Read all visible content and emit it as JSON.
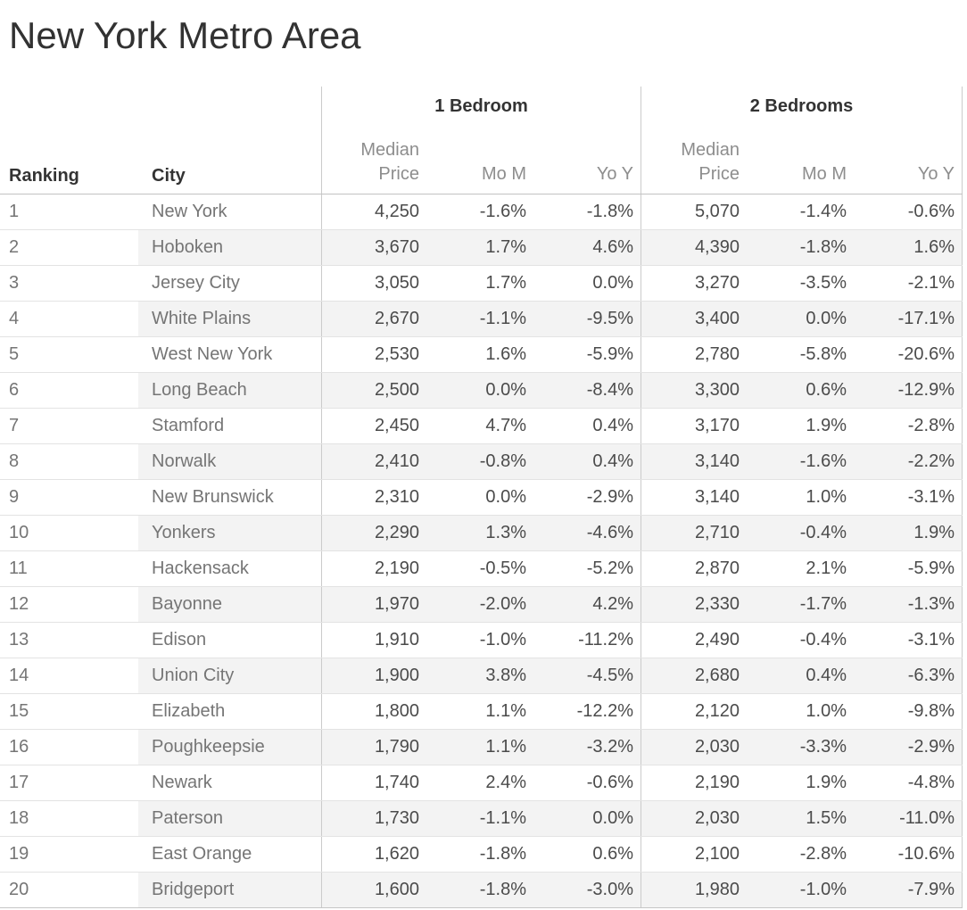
{
  "title": "New York Metro Area",
  "table": {
    "ranking_header": "Ranking",
    "city_header": "City",
    "group1_label": "1 Bedroom",
    "group2_label": "2 Bedrooms",
    "median_price_label": "Median\nPrice",
    "mom_label": "Mo M",
    "yoy_label": "Yo Y",
    "rows": [
      {
        "ranking": "1",
        "city": "New York",
        "br1_price": "4,250",
        "br1_mom": "-1.6%",
        "br1_yoy": "-1.8%",
        "br2_price": "5,070",
        "br2_mom": "-1.4%",
        "br2_yoy": "-0.6%"
      },
      {
        "ranking": "2",
        "city": "Hoboken",
        "br1_price": "3,670",
        "br1_mom": "1.7%",
        "br1_yoy": "4.6%",
        "br2_price": "4,390",
        "br2_mom": "-1.8%",
        "br2_yoy": "1.6%"
      },
      {
        "ranking": "3",
        "city": "Jersey City",
        "br1_price": "3,050",
        "br1_mom": "1.7%",
        "br1_yoy": "0.0%",
        "br2_price": "3,270",
        "br2_mom": "-3.5%",
        "br2_yoy": "-2.1%"
      },
      {
        "ranking": "4",
        "city": "White Plains",
        "br1_price": "2,670",
        "br1_mom": "-1.1%",
        "br1_yoy": "-9.5%",
        "br2_price": "3,400",
        "br2_mom": "0.0%",
        "br2_yoy": "-17.1%"
      },
      {
        "ranking": "5",
        "city": "West New York",
        "br1_price": "2,530",
        "br1_mom": "1.6%",
        "br1_yoy": "-5.9%",
        "br2_price": "2,780",
        "br2_mom": "-5.8%",
        "br2_yoy": "-20.6%"
      },
      {
        "ranking": "6",
        "city": "Long Beach",
        "br1_price": "2,500",
        "br1_mom": "0.0%",
        "br1_yoy": "-8.4%",
        "br2_price": "3,300",
        "br2_mom": "0.6%",
        "br2_yoy": "-12.9%"
      },
      {
        "ranking": "7",
        "city": "Stamford",
        "br1_price": "2,450",
        "br1_mom": "4.7%",
        "br1_yoy": "0.4%",
        "br2_price": "3,170",
        "br2_mom": "1.9%",
        "br2_yoy": "-2.8%"
      },
      {
        "ranking": "8",
        "city": "Norwalk",
        "br1_price": "2,410",
        "br1_mom": "-0.8%",
        "br1_yoy": "0.4%",
        "br2_price": "3,140",
        "br2_mom": "-1.6%",
        "br2_yoy": "-2.2%"
      },
      {
        "ranking": "9",
        "city": "New Brunswick",
        "br1_price": "2,310",
        "br1_mom": "0.0%",
        "br1_yoy": "-2.9%",
        "br2_price": "3,140",
        "br2_mom": "1.0%",
        "br2_yoy": "-3.1%"
      },
      {
        "ranking": "10",
        "city": "Yonkers",
        "br1_price": "2,290",
        "br1_mom": "1.3%",
        "br1_yoy": "-4.6%",
        "br2_price": "2,710",
        "br2_mom": "-0.4%",
        "br2_yoy": "1.9%"
      },
      {
        "ranking": "11",
        "city": "Hackensack",
        "br1_price": "2,190",
        "br1_mom": "-0.5%",
        "br1_yoy": "-5.2%",
        "br2_price": "2,870",
        "br2_mom": "2.1%",
        "br2_yoy": "-5.9%"
      },
      {
        "ranking": "12",
        "city": "Bayonne",
        "br1_price": "1,970",
        "br1_mom": "-2.0%",
        "br1_yoy": "4.2%",
        "br2_price": "2,330",
        "br2_mom": "-1.7%",
        "br2_yoy": "-1.3%"
      },
      {
        "ranking": "13",
        "city": "Edison",
        "br1_price": "1,910",
        "br1_mom": "-1.0%",
        "br1_yoy": "-11.2%",
        "br2_price": "2,490",
        "br2_mom": "-0.4%",
        "br2_yoy": "-3.1%"
      },
      {
        "ranking": "14",
        "city": "Union City",
        "br1_price": "1,900",
        "br1_mom": "3.8%",
        "br1_yoy": "-4.5%",
        "br2_price": "2,680",
        "br2_mom": "0.4%",
        "br2_yoy": "-6.3%"
      },
      {
        "ranking": "15",
        "city": "Elizabeth",
        "br1_price": "1,800",
        "br1_mom": "1.1%",
        "br1_yoy": "-12.2%",
        "br2_price": "2,120",
        "br2_mom": "1.0%",
        "br2_yoy": "-9.8%"
      },
      {
        "ranking": "16",
        "city": "Poughkeepsie",
        "br1_price": "1,790",
        "br1_mom": "1.1%",
        "br1_yoy": "-3.2%",
        "br2_price": "2,030",
        "br2_mom": "-3.3%",
        "br2_yoy": "-2.9%"
      },
      {
        "ranking": "17",
        "city": "Newark",
        "br1_price": "1,740",
        "br1_mom": "2.4%",
        "br1_yoy": "-0.6%",
        "br2_price": "2,190",
        "br2_mom": "1.9%",
        "br2_yoy": "-4.8%"
      },
      {
        "ranking": "18",
        "city": "Paterson",
        "br1_price": "1,730",
        "br1_mom": "-1.1%",
        "br1_yoy": "0.0%",
        "br2_price": "2,030",
        "br2_mom": "1.5%",
        "br2_yoy": "-11.0%"
      },
      {
        "ranking": "19",
        "city": "East Orange",
        "br1_price": "1,620",
        "br1_mom": "-1.8%",
        "br1_yoy": "0.6%",
        "br2_price": "2,100",
        "br2_mom": "-2.8%",
        "br2_yoy": "-10.6%"
      },
      {
        "ranking": "20",
        "city": "Bridgeport",
        "br1_price": "1,600",
        "br1_mom": "-1.8%",
        "br1_yoy": "-3.0%",
        "br2_price": "1,980",
        "br2_mom": "-1.0%",
        "br2_yoy": "-7.9%"
      }
    ]
  },
  "chart_data": {
    "type": "table",
    "title": "New York Metro Area",
    "columns": [
      "Ranking",
      "City",
      "1 Bedroom Median Price",
      "1 Bedroom MoM %",
      "1 Bedroom YoY %",
      "2 Bedrooms Median Price",
      "2 Bedrooms MoM %",
      "2 Bedrooms YoY %"
    ],
    "rows": [
      [
        1,
        "New York",
        4250,
        -1.6,
        -1.8,
        5070,
        -1.4,
        -0.6
      ],
      [
        2,
        "Hoboken",
        3670,
        1.7,
        4.6,
        4390,
        -1.8,
        1.6
      ],
      [
        3,
        "Jersey City",
        3050,
        1.7,
        0.0,
        3270,
        -3.5,
        -2.1
      ],
      [
        4,
        "White Plains",
        2670,
        -1.1,
        -9.5,
        3400,
        0.0,
        -17.1
      ],
      [
        5,
        "West New York",
        2530,
        1.6,
        -5.9,
        2780,
        -5.8,
        -20.6
      ],
      [
        6,
        "Long Beach",
        2500,
        0.0,
        -8.4,
        3300,
        0.6,
        -12.9
      ],
      [
        7,
        "Stamford",
        2450,
        4.7,
        0.4,
        3170,
        1.9,
        -2.8
      ],
      [
        8,
        "Norwalk",
        2410,
        -0.8,
        0.4,
        3140,
        -1.6,
        -2.2
      ],
      [
        9,
        "New Brunswick",
        2310,
        0.0,
        -2.9,
        3140,
        1.0,
        -3.1
      ],
      [
        10,
        "Yonkers",
        2290,
        1.3,
        -4.6,
        2710,
        -0.4,
        1.9
      ],
      [
        11,
        "Hackensack",
        2190,
        -0.5,
        -5.2,
        2870,
        2.1,
        -5.9
      ],
      [
        12,
        "Bayonne",
        1970,
        -2.0,
        4.2,
        2330,
        -1.7,
        -1.3
      ],
      [
        13,
        "Edison",
        1910,
        -1.0,
        -11.2,
        2490,
        -0.4,
        -3.1
      ],
      [
        14,
        "Union City",
        1900,
        3.8,
        -4.5,
        2680,
        0.4,
        -6.3
      ],
      [
        15,
        "Elizabeth",
        1800,
        1.1,
        -12.2,
        2120,
        1.0,
        -9.8
      ],
      [
        16,
        "Poughkeepsie",
        1790,
        1.1,
        -3.2,
        2030,
        -3.3,
        -2.9
      ],
      [
        17,
        "Newark",
        1740,
        2.4,
        -0.6,
        2190,
        1.9,
        -4.8
      ],
      [
        18,
        "Paterson",
        1730,
        -1.1,
        0.0,
        2030,
        1.5,
        -11.0
      ],
      [
        19,
        "East Orange",
        1620,
        -1.8,
        0.6,
        2100,
        -2.8,
        -10.6
      ],
      [
        20,
        "Bridgeport",
        1600,
        -1.8,
        -3.0,
        1980,
        -1.0,
        -7.9
      ]
    ]
  }
}
